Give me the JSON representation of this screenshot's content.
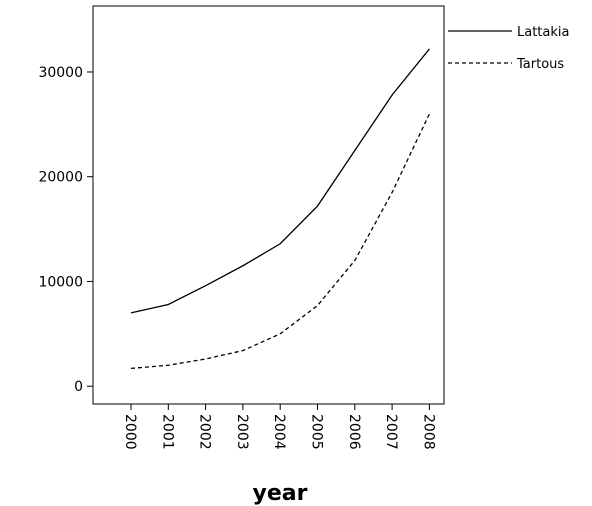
{
  "chart_data": {
    "type": "line",
    "title": "",
    "xlabel": "year",
    "ylabel": "",
    "categories": [
      "2000",
      "2001",
      "2002",
      "2003",
      "2004",
      "2005",
      "2006",
      "2007",
      "2008"
    ],
    "ylim": [
      -1700,
      36300
    ],
    "yticks": [
      0,
      10000,
      20000,
      30000
    ],
    "yticklabels": [
      "0",
      "10000",
      "20000",
      "30000"
    ],
    "grid": false,
    "legend_position": "top-right, outside plot",
    "series": [
      {
        "name": "Lattakia",
        "line_style": "solid",
        "color": "#000000",
        "values": [
          7000,
          7800,
          9600,
          11500,
          13600,
          17200,
          22500,
          27800,
          32200
        ]
      },
      {
        "name": "Tartous",
        "line_style": "dashed",
        "color": "#000000",
        "values": [
          1700,
          2000,
          2600,
          3400,
          5000,
          7700,
          12000,
          18500,
          26000
        ]
      }
    ]
  }
}
